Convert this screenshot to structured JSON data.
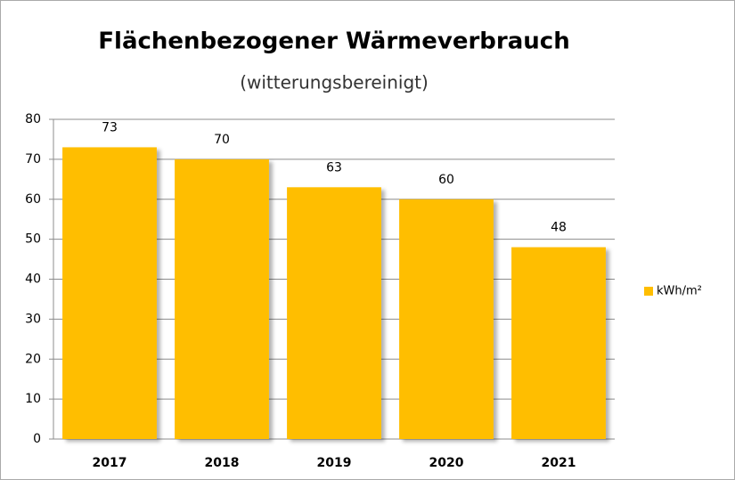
{
  "chart_data": {
    "type": "bar",
    "title": "Flächenbezogener Wärmeverbrauch",
    "subtitle": "(witterungsbereinigt)",
    "categories": [
      "2017",
      "2018",
      "2019",
      "2020",
      "2021"
    ],
    "series": [
      {
        "name": "kWh/m²",
        "color": "#ffbe00",
        "values": [
          73,
          70,
          63,
          60,
          48
        ]
      }
    ],
    "ylim": [
      0,
      80
    ],
    "yticks": [
      0,
      10,
      20,
      30,
      40,
      50,
      60,
      70,
      80
    ],
    "grid": true,
    "legend": "right"
  }
}
